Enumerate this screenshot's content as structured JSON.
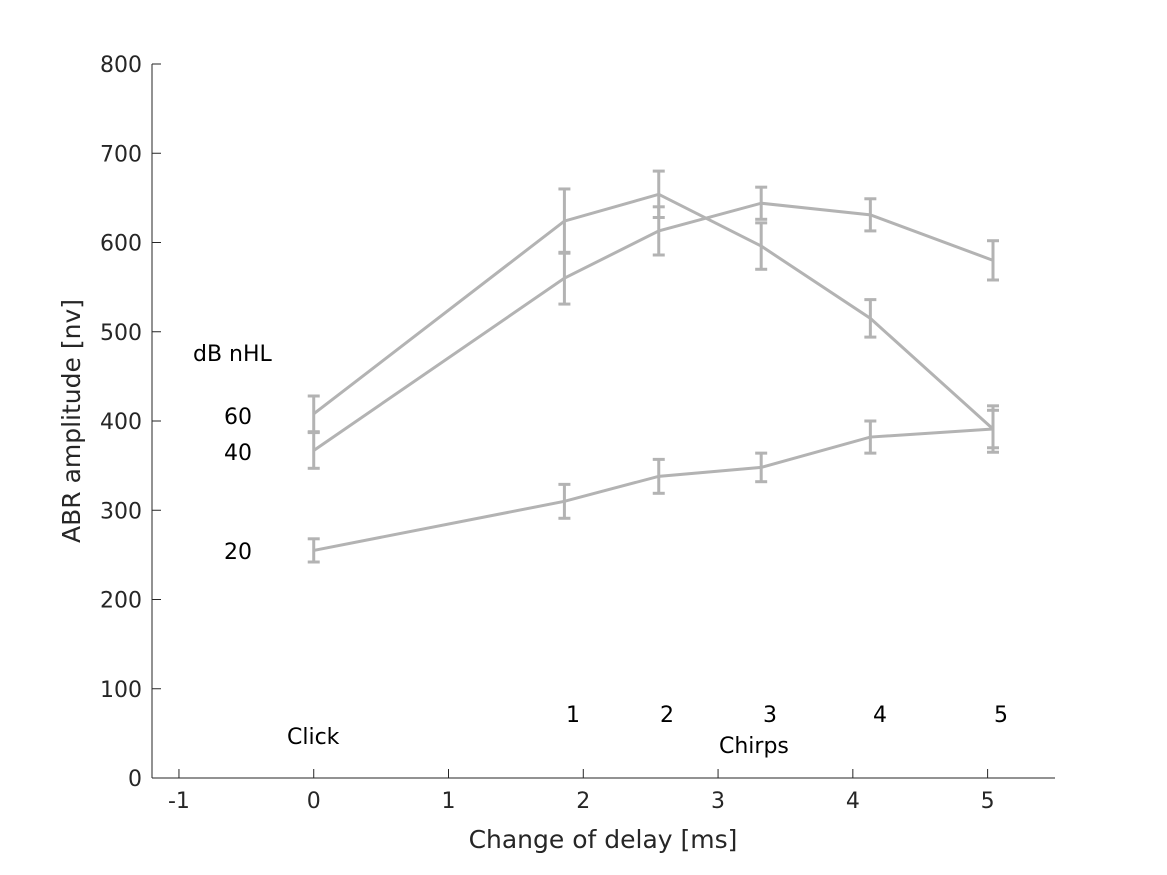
{
  "chart_data": {
    "type": "line",
    "title": "",
    "xlabel": "Change of delay [ms]",
    "ylabel": "ABR amplitude [nv]",
    "xlim": [
      -1.2,
      5.5
    ],
    "ylim": [
      0,
      800
    ],
    "xticks": [
      -1,
      0,
      1,
      2,
      3,
      4,
      5
    ],
    "yticks": [
      0,
      100,
      200,
      300,
      400,
      500,
      600,
      700,
      800
    ],
    "grid": false,
    "line_color": "#b3b3b3",
    "legend_title": "dB nHL",
    "series": [
      {
        "name": "60",
        "x": [
          0,
          1.86,
          2.56,
          3.32,
          4.13,
          5.04
        ],
        "y": [
          408,
          624,
          654,
          596,
          515,
          391
        ],
        "err": [
          20,
          36,
          26,
          26,
          21,
          26
        ]
      },
      {
        "name": "40",
        "x": [
          0,
          1.86,
          2.56,
          3.32,
          4.13,
          5.04
        ],
        "y": [
          367,
          560,
          613,
          644,
          631,
          580
        ],
        "err": [
          20,
          29,
          27,
          18,
          18,
          22
        ]
      },
      {
        "name": "20",
        "x": [
          0,
          1.86,
          2.56,
          3.32,
          4.13,
          5.04
        ],
        "y": [
          255,
          310,
          338,
          348,
          382,
          391
        ],
        "err": [
          13,
          19,
          19,
          16,
          18,
          21
        ]
      }
    ],
    "annotations": {
      "click": "Click",
      "chirps": "Chirps",
      "chirp_numbers": [
        "1",
        "2",
        "3",
        "4",
        "5"
      ]
    }
  }
}
